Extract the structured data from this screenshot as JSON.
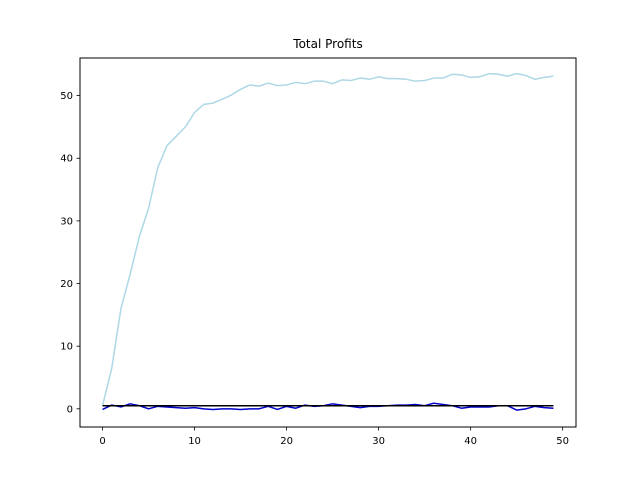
{
  "chart_data": {
    "type": "line",
    "title": "Total Profits",
    "xlabel": "",
    "ylabel": "",
    "xlim": [
      -2.45,
      51.45
    ],
    "ylim": [
      -2.9,
      56.0
    ],
    "xticks": [
      0,
      10,
      20,
      30,
      40,
      50
    ],
    "yticks": [
      0,
      10,
      20,
      30,
      40,
      50
    ],
    "grid": false,
    "x": [
      0,
      1,
      2,
      3,
      4,
      5,
      6,
      7,
      8,
      9,
      10,
      11,
      12,
      13,
      14,
      15,
      16,
      17,
      18,
      19,
      20,
      21,
      22,
      23,
      24,
      25,
      26,
      27,
      28,
      29,
      30,
      31,
      32,
      33,
      34,
      35,
      36,
      37,
      38,
      39,
      40,
      41,
      42,
      43,
      44,
      45,
      46,
      47,
      48,
      49
    ],
    "series": [
      {
        "color": "#add8e6",
        "values": [
          0.5,
          6.5,
          16.0,
          21.5,
          27.5,
          32.0,
          38.5,
          42.0,
          43.5,
          45.0,
          47.3,
          48.6,
          48.8,
          49.4,
          50.1,
          51.0,
          51.7,
          51.5,
          52.0,
          51.6,
          51.7,
          52.1,
          51.9,
          52.3,
          52.3,
          51.9,
          52.5,
          52.4,
          52.8,
          52.6,
          53.0,
          52.7,
          52.7,
          52.6,
          52.3,
          52.4,
          52.8,
          52.8,
          53.4,
          53.3,
          52.9,
          53.0,
          53.5,
          53.4,
          53.1,
          53.5,
          53.2,
          52.6,
          52.9,
          53.1
        ]
      },
      {
        "color": "#0000cd",
        "values": [
          -0.1,
          0.6,
          0.3,
          0.8,
          0.5,
          0.0,
          0.4,
          0.3,
          0.2,
          0.1,
          0.2,
          0.0,
          -0.1,
          0.0,
          0.0,
          -0.1,
          0.0,
          0.0,
          0.4,
          -0.1,
          0.4,
          0.1,
          0.6,
          0.4,
          0.5,
          0.8,
          0.6,
          0.4,
          0.2,
          0.4,
          0.4,
          0.5,
          0.6,
          0.6,
          0.7,
          0.5,
          0.9,
          0.7,
          0.5,
          0.1,
          0.3,
          0.3,
          0.3,
          0.5,
          0.5,
          -0.2,
          0.0,
          0.4,
          0.2,
          0.1
        ]
      },
      {
        "color": "#000000",
        "values": [
          0.5,
          0.5,
          0.5,
          0.5,
          0.5,
          0.5,
          0.5,
          0.5,
          0.5,
          0.5,
          0.5,
          0.5,
          0.5,
          0.5,
          0.5,
          0.5,
          0.5,
          0.5,
          0.5,
          0.5,
          0.5,
          0.5,
          0.5,
          0.5,
          0.5,
          0.5,
          0.5,
          0.5,
          0.5,
          0.5,
          0.5,
          0.5,
          0.5,
          0.5,
          0.5,
          0.5,
          0.5,
          0.5,
          0.5,
          0.5,
          0.5,
          0.5,
          0.5,
          0.5,
          0.5,
          0.5,
          0.5,
          0.5,
          0.5,
          0.5
        ]
      }
    ]
  }
}
